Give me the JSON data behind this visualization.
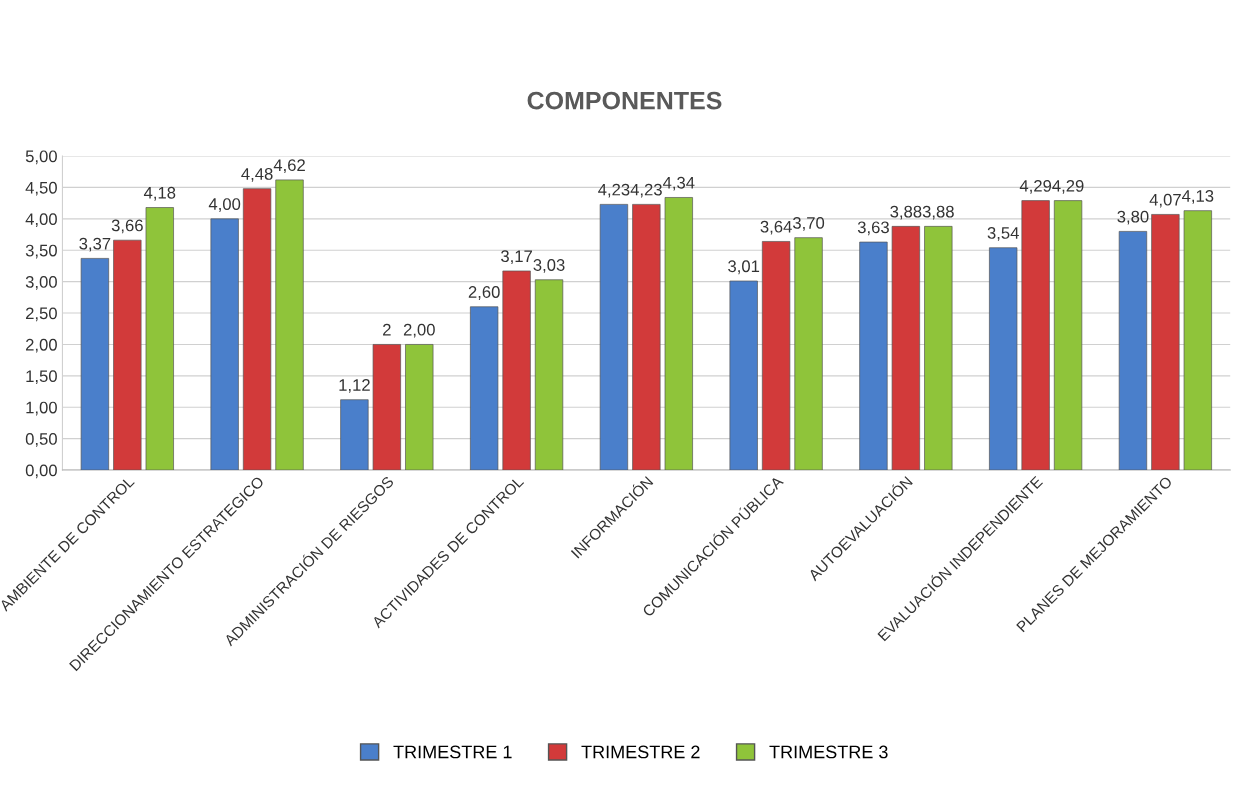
{
  "chart_data": {
    "type": "bar",
    "title": "COMPONENTES",
    "categories": [
      "AMBIENTE DE CONTROL",
      "DIRECCIONAMIENTO ESTRATEGICO",
      "ADMINISTRACIÓN DE RIESGOS",
      "ACTIVIDADES DE CONTROL",
      "INFORMACIÓN",
      "COMUNICACIÓN PÚBLICA",
      "AUTOEVALUACIÓN",
      "EVALUACIÓN INDEPENDIENTE",
      "PLANES DE MEJORAMIENTO"
    ],
    "series": [
      {
        "name": "TRIMESTRE 1",
        "color": "#4a7fcb",
        "values": [
          3.37,
          4.0,
          1.12,
          2.6,
          4.23,
          3.01,
          3.63,
          3.54,
          3.8
        ],
        "value_labels": [
          "3,37",
          "4,00",
          "1,12",
          "2,60",
          "4,23",
          "3,01",
          "3,63",
          "3,54",
          "3,80"
        ]
      },
      {
        "name": "TRIMESTRE 2",
        "color": "#d23a3a",
        "values": [
          3.66,
          4.48,
          2.0,
          3.17,
          4.23,
          3.64,
          3.88,
          4.29,
          4.07
        ],
        "value_labels": [
          "3,66",
          "4,48",
          "2",
          "3,17",
          "4,23",
          "3,64",
          "3,88",
          "4,29",
          "4,07"
        ]
      },
      {
        "name": "TRIMESTRE 3",
        "color": "#8fc43a",
        "values": [
          4.18,
          4.62,
          2.0,
          3.03,
          4.34,
          3.7,
          3.88,
          4.29,
          4.13
        ],
        "value_labels": [
          "4,18",
          "4,62",
          "2,00",
          "3,03",
          "4,34",
          "3,70",
          "3,88",
          "4,29",
          "4,13"
        ]
      }
    ],
    "ylim": [
      0,
      5
    ],
    "yticks": [
      {
        "value": 0,
        "label": "0,00"
      },
      {
        "value": 0.5,
        "label": "0,50"
      },
      {
        "value": 1,
        "label": "1,00"
      },
      {
        "value": 1.5,
        "label": "1,50"
      },
      {
        "value": 2,
        "label": "2,00"
      },
      {
        "value": 2.5,
        "label": "2,50"
      },
      {
        "value": 3,
        "label": "3,00"
      },
      {
        "value": 3.5,
        "label": "3,50"
      },
      {
        "value": 4,
        "label": "4,00"
      },
      {
        "value": 4.5,
        "label": "4,50"
      },
      {
        "value": 5,
        "label": "5,00"
      }
    ],
    "grid": "y",
    "legend": "bottom"
  }
}
